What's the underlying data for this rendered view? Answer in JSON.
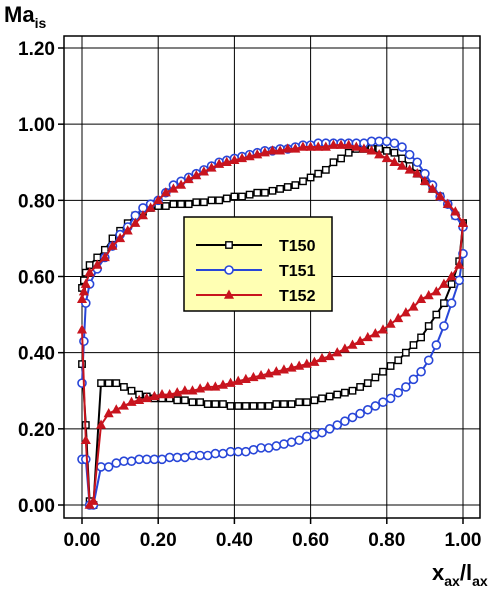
{
  "chart_data": {
    "type": "line",
    "y_label_main": "Ma",
    "y_label_sub": "is",
    "x_label_main": "x",
    "x_label_sub1": "ax",
    "x_label_sep": "/l",
    "x_label_sub2": "ax",
    "xlim": [
      0.0,
      1.0
    ],
    "ylim": [
      0.0,
      1.2
    ],
    "x_ticks": [
      "0.00",
      "0.20",
      "0.40",
      "0.60",
      "0.80",
      "1.00"
    ],
    "y_ticks": [
      "0.00",
      "0.20",
      "0.40",
      "0.60",
      "0.80",
      "1.00",
      "1.20"
    ],
    "grid": true,
    "legend_position": "center",
    "legend_background": "#ffffb3",
    "series": [
      {
        "name": "T150",
        "color": "#000000",
        "marker": "square",
        "x": [
          0.0,
          0.005,
          0.01,
          0.02,
          0.04,
          0.06,
          0.08,
          0.1,
          0.12,
          0.14,
          0.16,
          0.18,
          0.2,
          0.22,
          0.24,
          0.26,
          0.28,
          0.3,
          0.32,
          0.34,
          0.36,
          0.38,
          0.4,
          0.42,
          0.44,
          0.46,
          0.48,
          0.5,
          0.52,
          0.54,
          0.56,
          0.58,
          0.6,
          0.62,
          0.64,
          0.66,
          0.68,
          0.7,
          0.72,
          0.74,
          0.76,
          0.78,
          0.8,
          0.82,
          0.84,
          0.86,
          0.88,
          0.9,
          0.92,
          0.94,
          0.96,
          0.98,
          1.0
        ],
        "y": [
          0.57,
          0.59,
          0.61,
          0.63,
          0.65,
          0.67,
          0.7,
          0.72,
          0.74,
          0.76,
          0.77,
          0.78,
          0.785,
          0.785,
          0.79,
          0.79,
          0.79,
          0.795,
          0.795,
          0.8,
          0.8,
          0.805,
          0.81,
          0.81,
          0.815,
          0.82,
          0.82,
          0.825,
          0.83,
          0.835,
          0.84,
          0.85,
          0.86,
          0.87,
          0.88,
          0.9,
          0.91,
          0.925,
          0.935,
          0.935,
          0.935,
          0.935,
          0.93,
          0.925,
          0.91,
          0.89,
          0.87,
          0.85,
          0.83,
          0.81,
          0.79,
          0.76,
          0.74
        ],
        "x_lower": [
          0.0,
          0.01,
          0.02,
          0.03,
          0.05,
          0.07,
          0.09,
          0.11,
          0.13,
          0.15,
          0.17,
          0.19,
          0.21,
          0.23,
          0.25,
          0.27,
          0.29,
          0.31,
          0.33,
          0.35,
          0.37,
          0.39,
          0.41,
          0.43,
          0.45,
          0.47,
          0.49,
          0.51,
          0.53,
          0.55,
          0.57,
          0.59,
          0.61,
          0.63,
          0.65,
          0.67,
          0.69,
          0.71,
          0.73,
          0.75,
          0.77,
          0.79,
          0.81,
          0.83,
          0.85,
          0.87,
          0.89,
          0.91,
          0.93,
          0.95,
          0.97,
          0.99,
          1.0
        ],
        "y_lower": [
          0.37,
          0.21,
          0.01,
          0.0,
          0.32,
          0.32,
          0.32,
          0.31,
          0.3,
          0.29,
          0.285,
          0.28,
          0.28,
          0.28,
          0.275,
          0.275,
          0.27,
          0.27,
          0.265,
          0.265,
          0.265,
          0.26,
          0.26,
          0.26,
          0.26,
          0.26,
          0.26,
          0.265,
          0.265,
          0.265,
          0.27,
          0.27,
          0.275,
          0.28,
          0.285,
          0.29,
          0.295,
          0.3,
          0.31,
          0.32,
          0.335,
          0.35,
          0.365,
          0.38,
          0.4,
          0.42,
          0.44,
          0.47,
          0.5,
          0.53,
          0.58,
          0.64,
          0.74
        ]
      },
      {
        "name": "T151",
        "color": "#2846d8",
        "marker": "circle",
        "x": [
          0.0,
          0.005,
          0.01,
          0.02,
          0.04,
          0.06,
          0.08,
          0.1,
          0.12,
          0.14,
          0.16,
          0.18,
          0.2,
          0.22,
          0.24,
          0.26,
          0.28,
          0.3,
          0.32,
          0.34,
          0.36,
          0.38,
          0.4,
          0.42,
          0.44,
          0.46,
          0.48,
          0.5,
          0.52,
          0.54,
          0.56,
          0.58,
          0.6,
          0.62,
          0.64,
          0.66,
          0.68,
          0.7,
          0.72,
          0.74,
          0.76,
          0.78,
          0.8,
          0.82,
          0.84,
          0.86,
          0.88,
          0.9,
          0.92,
          0.94,
          0.96,
          0.98,
          1.0
        ],
        "y": [
          0.32,
          0.43,
          0.53,
          0.58,
          0.62,
          0.65,
          0.68,
          0.71,
          0.73,
          0.76,
          0.78,
          0.79,
          0.8,
          0.82,
          0.84,
          0.85,
          0.86,
          0.87,
          0.88,
          0.89,
          0.9,
          0.905,
          0.91,
          0.915,
          0.92,
          0.925,
          0.93,
          0.93,
          0.935,
          0.935,
          0.94,
          0.945,
          0.945,
          0.95,
          0.95,
          0.95,
          0.95,
          0.95,
          0.95,
          0.95,
          0.955,
          0.955,
          0.955,
          0.95,
          0.94,
          0.92,
          0.9,
          0.87,
          0.84,
          0.81,
          0.79,
          0.76,
          0.73
        ],
        "x_lower": [
          0.0,
          0.01,
          0.02,
          0.03,
          0.05,
          0.07,
          0.09,
          0.11,
          0.13,
          0.15,
          0.17,
          0.19,
          0.21,
          0.23,
          0.25,
          0.27,
          0.29,
          0.31,
          0.33,
          0.35,
          0.37,
          0.39,
          0.41,
          0.43,
          0.45,
          0.47,
          0.49,
          0.51,
          0.53,
          0.55,
          0.57,
          0.59,
          0.61,
          0.63,
          0.65,
          0.67,
          0.69,
          0.71,
          0.73,
          0.75,
          0.77,
          0.79,
          0.81,
          0.83,
          0.85,
          0.87,
          0.89,
          0.91,
          0.93,
          0.95,
          0.97,
          0.99,
          1.0
        ],
        "y_lower": [
          0.12,
          0.12,
          0.0,
          0.0,
          0.1,
          0.1,
          0.11,
          0.115,
          0.115,
          0.12,
          0.12,
          0.12,
          0.12,
          0.125,
          0.125,
          0.125,
          0.13,
          0.13,
          0.13,
          0.135,
          0.135,
          0.14,
          0.14,
          0.14,
          0.145,
          0.15,
          0.15,
          0.155,
          0.16,
          0.165,
          0.17,
          0.18,
          0.185,
          0.19,
          0.2,
          0.21,
          0.22,
          0.23,
          0.24,
          0.25,
          0.26,
          0.27,
          0.28,
          0.295,
          0.31,
          0.33,
          0.35,
          0.38,
          0.42,
          0.47,
          0.53,
          0.59,
          0.66
        ]
      },
      {
        "name": "T152",
        "color": "#c8141e",
        "marker": "triangle",
        "x": [
          0.0,
          0.005,
          0.01,
          0.02,
          0.04,
          0.06,
          0.08,
          0.1,
          0.12,
          0.14,
          0.16,
          0.18,
          0.2,
          0.22,
          0.24,
          0.26,
          0.28,
          0.3,
          0.32,
          0.34,
          0.36,
          0.38,
          0.4,
          0.42,
          0.44,
          0.46,
          0.48,
          0.5,
          0.52,
          0.54,
          0.56,
          0.58,
          0.6,
          0.62,
          0.64,
          0.66,
          0.68,
          0.7,
          0.72,
          0.74,
          0.76,
          0.78,
          0.8,
          0.82,
          0.84,
          0.86,
          0.88,
          0.9,
          0.92,
          0.94,
          0.96,
          0.98,
          1.0
        ],
        "y": [
          0.54,
          0.56,
          0.58,
          0.61,
          0.63,
          0.65,
          0.68,
          0.7,
          0.72,
          0.74,
          0.76,
          0.78,
          0.8,
          0.82,
          0.83,
          0.84,
          0.855,
          0.865,
          0.875,
          0.885,
          0.895,
          0.9,
          0.905,
          0.91,
          0.915,
          0.92,
          0.925,
          0.93,
          0.93,
          0.935,
          0.935,
          0.94,
          0.94,
          0.94,
          0.94,
          0.945,
          0.945,
          0.945,
          0.94,
          0.935,
          0.93,
          0.92,
          0.91,
          0.9,
          0.89,
          0.88,
          0.87,
          0.85,
          0.83,
          0.81,
          0.79,
          0.77,
          0.74
        ],
        "x_lower": [
          0.0,
          0.01,
          0.02,
          0.03,
          0.05,
          0.07,
          0.09,
          0.11,
          0.13,
          0.15,
          0.17,
          0.19,
          0.21,
          0.23,
          0.25,
          0.27,
          0.29,
          0.31,
          0.33,
          0.35,
          0.37,
          0.39,
          0.41,
          0.43,
          0.45,
          0.47,
          0.49,
          0.51,
          0.53,
          0.55,
          0.57,
          0.59,
          0.61,
          0.63,
          0.65,
          0.67,
          0.69,
          0.71,
          0.73,
          0.75,
          0.77,
          0.79,
          0.81,
          0.83,
          0.85,
          0.87,
          0.89,
          0.91,
          0.93,
          0.95,
          0.97,
          0.99,
          1.0
        ],
        "y_lower": [
          0.46,
          0.17,
          0.0,
          0.01,
          0.21,
          0.24,
          0.25,
          0.26,
          0.27,
          0.275,
          0.28,
          0.285,
          0.29,
          0.29,
          0.295,
          0.3,
          0.3,
          0.305,
          0.31,
          0.31,
          0.315,
          0.32,
          0.325,
          0.33,
          0.335,
          0.34,
          0.345,
          0.35,
          0.355,
          0.36,
          0.365,
          0.37,
          0.375,
          0.385,
          0.39,
          0.4,
          0.41,
          0.42,
          0.43,
          0.44,
          0.45,
          0.46,
          0.475,
          0.49,
          0.505,
          0.52,
          0.54,
          0.55,
          0.56,
          0.58,
          0.6,
          0.63,
          0.74
        ]
      }
    ]
  }
}
